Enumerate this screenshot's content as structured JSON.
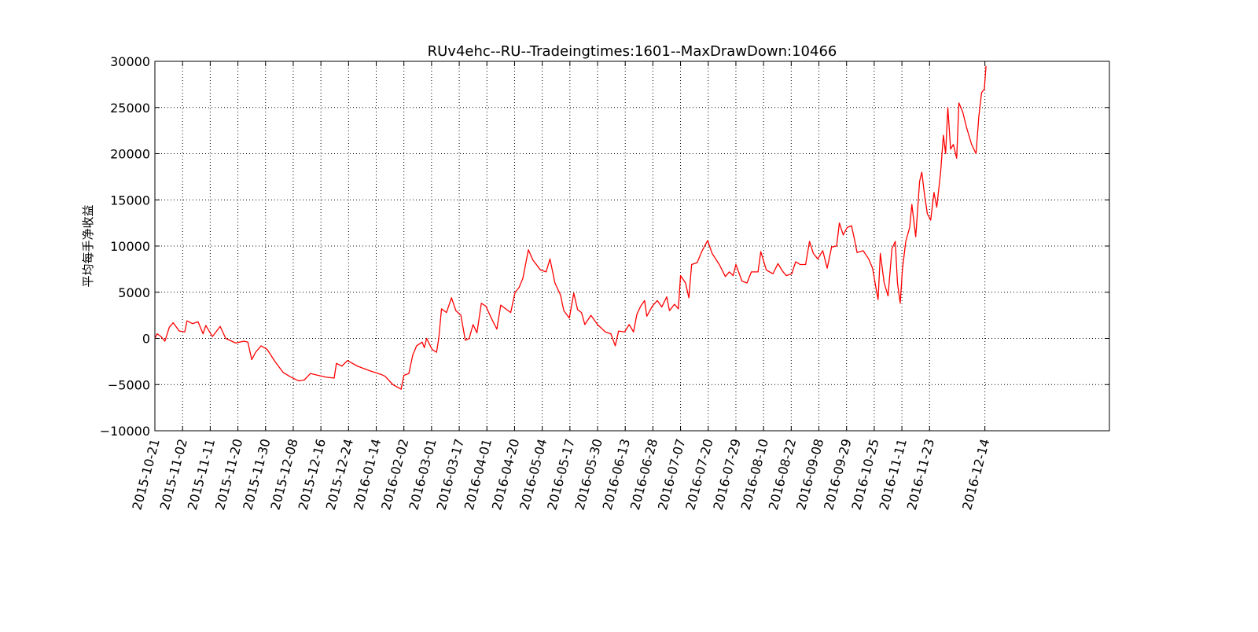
{
  "chart_data": {
    "type": "line",
    "title": "RUv4ehc--RU--Tradeingtimes:1601--MaxDrawDown:10466",
    "y_label": "平均每手净收益",
    "color": "#ff0000",
    "grid": true,
    "xlim": [
      0,
      1725
    ],
    "ylim": [
      -10000,
      30000
    ],
    "yticks": [
      {
        "value": -10000,
        "label": "−10000"
      },
      {
        "value": -5000,
        "label": "−5000"
      },
      0,
      5000,
      10000,
      15000,
      20000,
      25000,
      30000
    ],
    "xticks": [
      {
        "value": 0,
        "label": "2015-10-21"
      },
      {
        "value": 50,
        "label": "2015-11-02"
      },
      {
        "value": 100,
        "label": "2015-11-11"
      },
      {
        "value": 150,
        "label": "2015-11-20"
      },
      {
        "value": 200,
        "label": "2015-11-30"
      },
      {
        "value": 250,
        "label": "2015-12-08"
      },
      {
        "value": 300,
        "label": "2015-12-16"
      },
      {
        "value": 350,
        "label": "2015-12-24"
      },
      {
        "value": 400,
        "label": "2016-01-14"
      },
      {
        "value": 450,
        "label": "2016-02-02"
      },
      {
        "value": 500,
        "label": "2016-03-01"
      },
      {
        "value": 550,
        "label": "2016-03-17"
      },
      {
        "value": 600,
        "label": "2016-04-01"
      },
      {
        "value": 650,
        "label": "2016-04-20"
      },
      {
        "value": 700,
        "label": "2016-05-04"
      },
      {
        "value": 750,
        "label": "2016-05-17"
      },
      {
        "value": 800,
        "label": "2016-05-30"
      },
      {
        "value": 850,
        "label": "2016-06-13"
      },
      {
        "value": 900,
        "label": "2016-06-28"
      },
      {
        "value": 950,
        "label": "2016-07-07"
      },
      {
        "value": 1000,
        "label": "2016-07-20"
      },
      {
        "value": 1050,
        "label": "2016-07-29"
      },
      {
        "value": 1100,
        "label": "2016-08-10"
      },
      {
        "value": 1150,
        "label": "2016-08-22"
      },
      {
        "value": 1200,
        "label": "2016-09-08"
      },
      {
        "value": 1250,
        "label": "2016-09-29"
      },
      {
        "value": 1300,
        "label": "2016-10-25"
      },
      {
        "value": 1350,
        "label": "2016-11-11"
      },
      {
        "value": 1400,
        "label": "2016-11-23"
      },
      {
        "value": 1500,
        "label": "2016-12-14"
      }
    ],
    "x": [
      0,
      4,
      11,
      18,
      26,
      33,
      44,
      54,
      58,
      68,
      78,
      87,
      92,
      104,
      118,
      128,
      146,
      161,
      168,
      175,
      182,
      192,
      203,
      217,
      232,
      246,
      260,
      270,
      281,
      295,
      310,
      324,
      328,
      338,
      348,
      366,
      388,
      409,
      416,
      430,
      445,
      450,
      459,
      466,
      473,
      483,
      487,
      491,
      501,
      509,
      513,
      518,
      527,
      536,
      544,
      553,
      561,
      568,
      575,
      582,
      590,
      598,
      608,
      618,
      625,
      634,
      643,
      651,
      658,
      665,
      675,
      683,
      697,
      707,
      714,
      723,
      733,
      739,
      749,
      757,
      764,
      771,
      777,
      788,
      800,
      814,
      824,
      832,
      838,
      849,
      857,
      865,
      871,
      878,
      885,
      889,
      899,
      908,
      916,
      925,
      930,
      939,
      946,
      950,
      959,
      965,
      970,
      980,
      989,
      999,
      1007,
      1020,
      1031,
      1038,
      1045,
      1050,
      1061,
      1070,
      1078,
      1090,
      1095,
      1105,
      1117,
      1126,
      1134,
      1141,
      1151,
      1158,
      1166,
      1176,
      1183,
      1190,
      1198,
      1207,
      1215,
      1223,
      1232,
      1237,
      1244,
      1251,
      1259,
      1264,
      1269,
      1280,
      1290,
      1297,
      1303,
      1307,
      1311,
      1318,
      1325,
      1332,
      1338,
      1342,
      1347,
      1351,
      1357,
      1364,
      1368,
      1375,
      1382,
      1386,
      1391,
      1396,
      1402,
      1408,
      1413,
      1420,
      1425,
      1429,
      1433,
      1438,
      1443,
      1449,
      1453,
      1460,
      1467,
      1476,
      1484,
      1489,
      1494,
      1499,
      1502
    ],
    "values": [
      0,
      500,
      200,
      -300,
      1200,
      1700,
      800,
      700,
      1900,
      1600,
      1800,
      500,
      1400,
      200,
      1300,
      0,
      -500,
      -300,
      -400,
      -2300,
      -1500,
      -800,
      -1200,
      -2500,
      -3700,
      -4200,
      -4600,
      -4500,
      -3800,
      -4000,
      -4200,
      -4300,
      -2700,
      -3000,
      -2400,
      -3000,
      -3500,
      -3900,
      -4100,
      -5000,
      -5500,
      -4000,
      -3800,
      -1800,
      -800,
      -400,
      -1000,
      0,
      -1200,
      -1500,
      0,
      3200,
      2800,
      4400,
      3000,
      2500,
      -200,
      0,
      1500,
      600,
      3800,
      3500,
      2200,
      1000,
      3600,
      3200,
      2800,
      5000,
      5500,
      6500,
      9600,
      8500,
      7400,
      7200,
      8600,
      6000,
      4700,
      3000,
      2200,
      4900,
      3100,
      2800,
      1500,
      2500,
      1500,
      700,
      500,
      -800,
      800,
      700,
      1500,
      700,
      2600,
      3500,
      4100,
      2400,
      3500,
      4100,
      3400,
      4500,
      3000,
      3700,
      3200,
      6800,
      6000,
      4400,
      8000,
      8200,
      9500,
      10600,
      9200,
      8000,
      6700,
      7200,
      6800,
      8000,
      6200,
      6000,
      7200,
      7200,
      9400,
      7400,
      7000,
      8100,
      7300,
      6800,
      7000,
      8300,
      8000,
      8000,
      10500,
      9200,
      8600,
      9500,
      7600,
      9900,
      10000,
      12500,
      11200,
      12000,
      12200,
      10800,
      9300,
      9500,
      8600,
      7600,
      5500,
      4200,
      9200,
      6000,
      4600,
      9700,
      10500,
      6000,
      3800,
      7500,
      10500,
      12000,
      14500,
      11000,
      17000,
      18000,
      15500,
      13500,
      12800,
      15800,
      14200,
      18000,
      22000,
      20000,
      25000,
      20500,
      21000,
      19500,
      25500,
      24500,
      22800,
      21000,
      20000,
      24000,
      26600,
      27000,
      29500
    ]
  }
}
